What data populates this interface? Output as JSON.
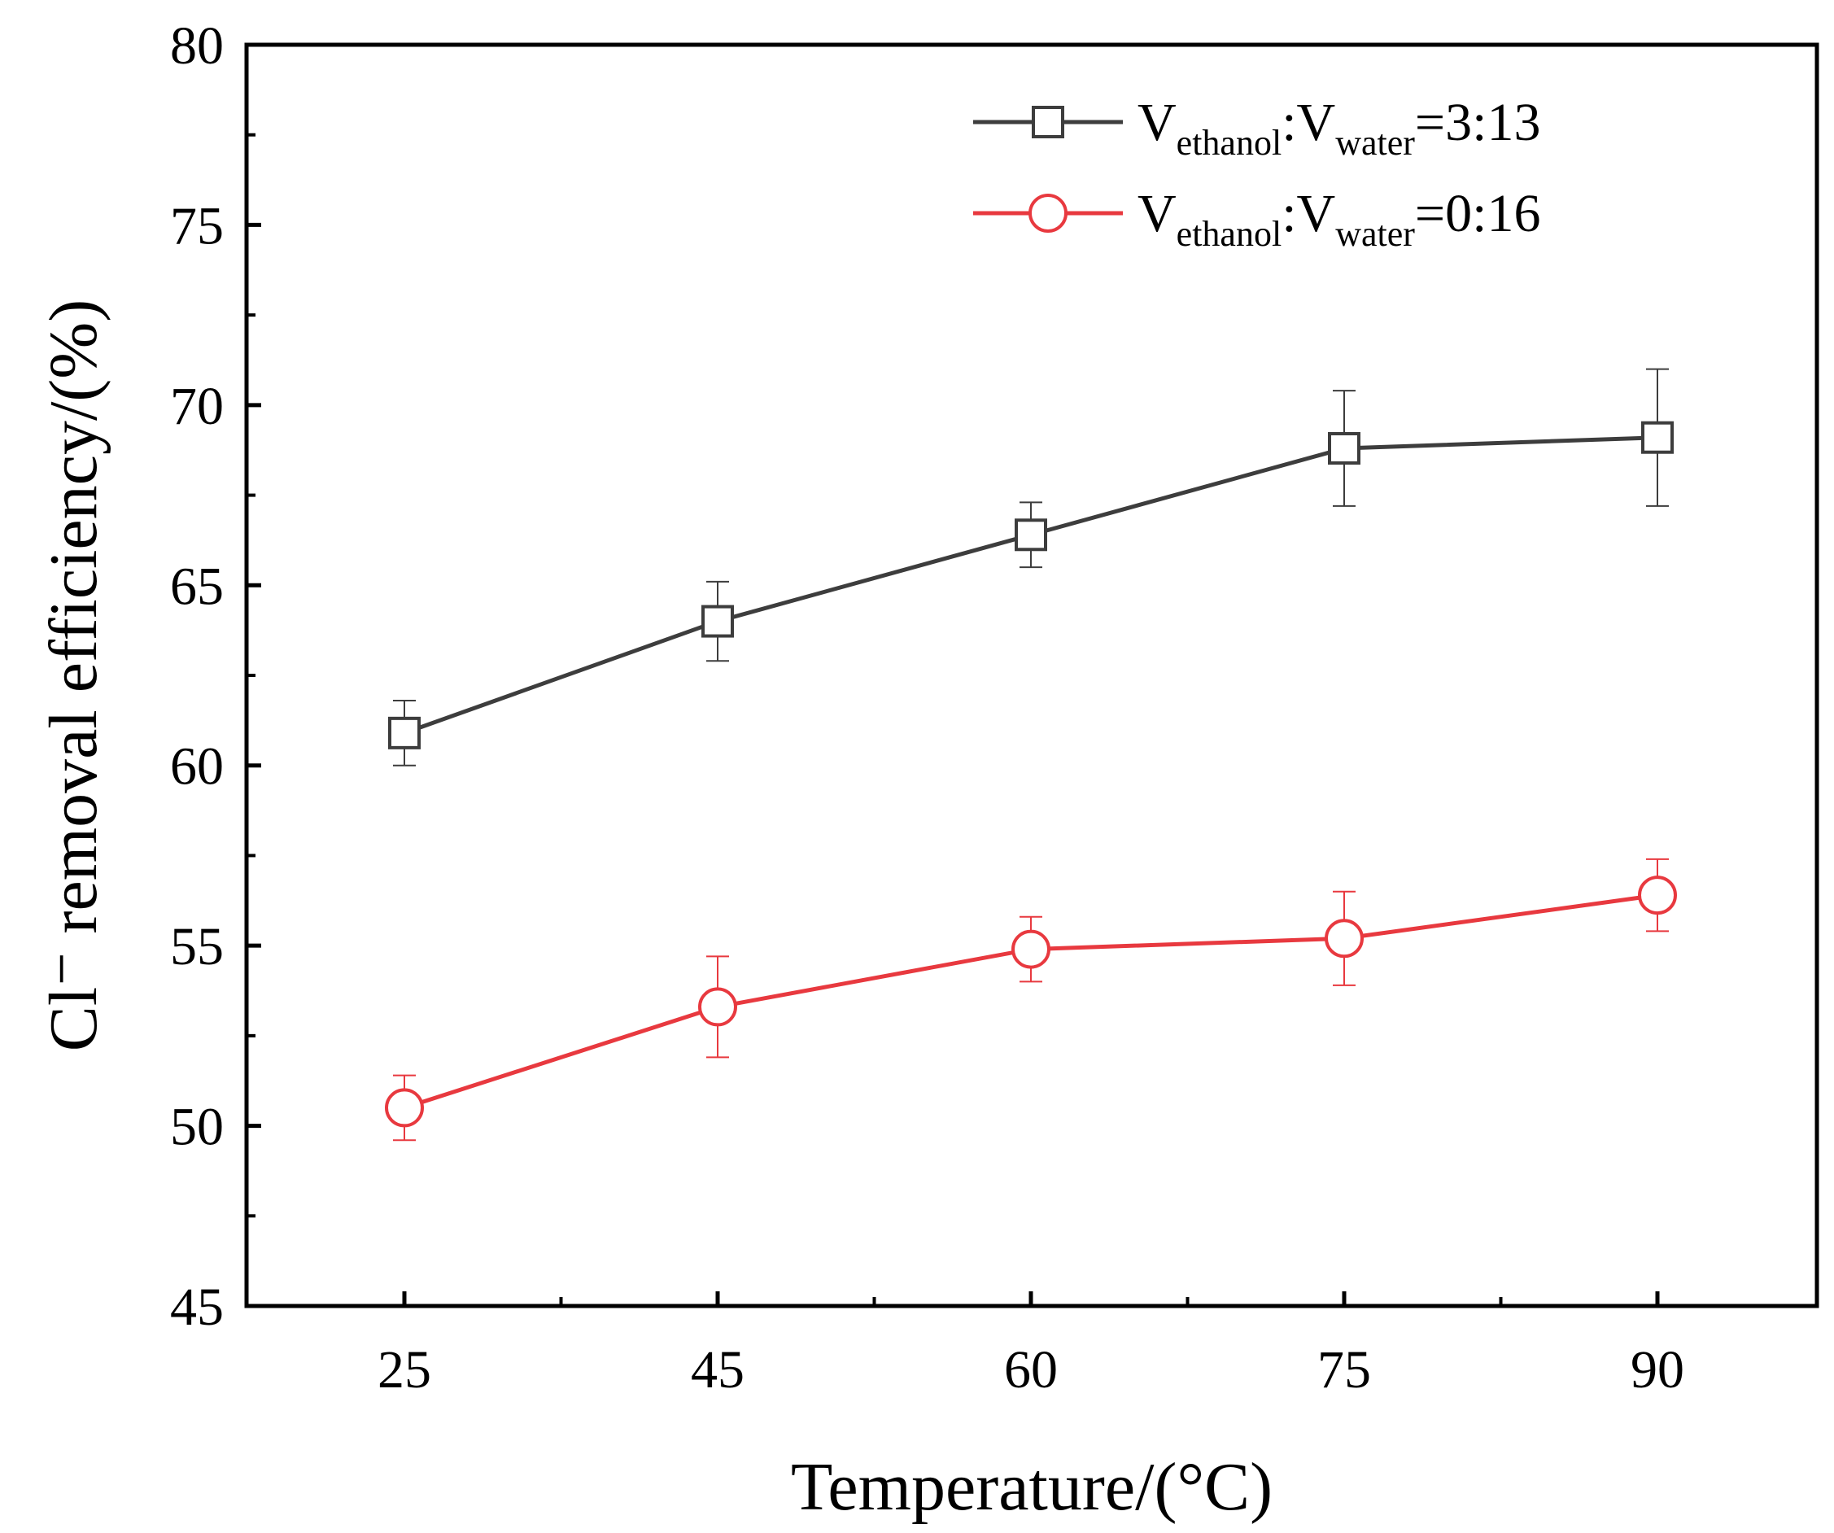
{
  "chart_data": {
    "type": "line",
    "title": "",
    "xlabel": "Temperature/(°C)",
    "ylabel": "Cl⁻ removal efficiency/(%)",
    "categories": [
      "25",
      "45",
      "60",
      "75",
      "90"
    ],
    "ylim": [
      45,
      80
    ],
    "yticks": [
      45,
      50,
      55,
      60,
      65,
      70,
      75,
      80
    ],
    "grid": false,
    "legend_position": "top-right",
    "series": [
      {
        "name": "Vethanol:Vwater=3:13",
        "label_parts": {
          "v1": "V",
          "sub1": "ethanol",
          "colon": ":V",
          "sub2": "water",
          "ratio": "=3:13"
        },
        "color": "#3d3d3d",
        "marker": "square",
        "values": [
          60.9,
          64.0,
          66.4,
          68.8,
          69.1
        ],
        "errors": [
          0.9,
          1.1,
          0.9,
          1.6,
          1.9
        ]
      },
      {
        "name": "Vethanol:Vwater=0:16",
        "label_parts": {
          "v1": "V",
          "sub1": "ethanol",
          "colon": ":V",
          "sub2": "water",
          "ratio": "=0:16"
        },
        "color": "#e8393f",
        "marker": "circle",
        "values": [
          50.5,
          53.3,
          54.9,
          55.2,
          56.4
        ],
        "errors": [
          0.9,
          1.4,
          0.9,
          1.3,
          1.0
        ]
      }
    ]
  }
}
